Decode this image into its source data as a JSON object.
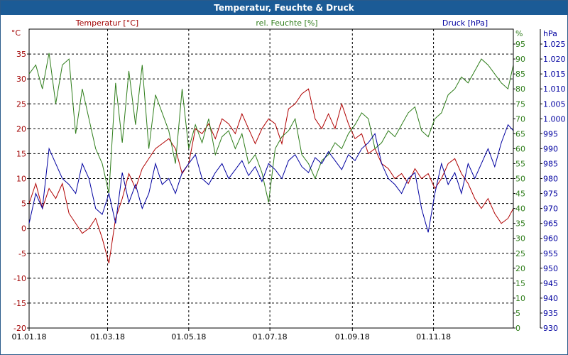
{
  "window": {
    "title": "Temperatur, Feuchte & Druck"
  },
  "chart_data": {
    "type": "line",
    "title": "Temperatur, Feuchte & Druck",
    "grid": true,
    "x_ticks": [
      "01.01.18",
      "01.03.18",
      "01.05.18",
      "01.07.18",
      "01.09.18",
      "01.11.18"
    ],
    "x_tick_days": [
      0,
      59,
      120,
      181,
      243,
      304
    ],
    "x_range_days": [
      0,
      364
    ],
    "axes": {
      "temperature": {
        "label": "Temperatur [°C]",
        "unit": "°C",
        "range": [
          -20,
          40
        ],
        "color": "#a00000",
        "ticks": [
          "-20",
          "-15",
          "-10",
          "-5",
          "0",
          "5",
          "10",
          "15",
          "20",
          "25",
          "30",
          "35"
        ]
      },
      "humidity": {
        "label": "rel. Feuchte [%]",
        "unit": "%",
        "range": [
          0,
          100
        ],
        "color": "#2e7d1a",
        "ticks": [
          "0",
          "5",
          "10",
          "15",
          "20",
          "25",
          "30",
          "35",
          "40",
          "45",
          "50",
          "55",
          "60",
          "65",
          "70",
          "75",
          "80",
          "85",
          "90",
          "95"
        ]
      },
      "pressure": {
        "label": "Druck [hPa]",
        "unit": "hPa",
        "range": [
          930,
          1030
        ],
        "color": "#0000a0",
        "ticks": [
          "930",
          "935",
          "940",
          "945",
          "950",
          "955",
          "960",
          "965",
          "970",
          "975",
          "980",
          "985",
          "990",
          "995",
          "1.000",
          "1.005",
          "1.010",
          "1.015",
          "1.020",
          "1.025"
        ]
      }
    },
    "series": [
      {
        "name": "Temperatur [°C]",
        "axis": "temperature",
        "color": "#b00000",
        "x": [
          0,
          5,
          10,
          15,
          20,
          25,
          30,
          35,
          40,
          45,
          50,
          55,
          60,
          65,
          70,
          75,
          80,
          85,
          90,
          95,
          100,
          105,
          110,
          115,
          120,
          125,
          130,
          135,
          140,
          145,
          150,
          155,
          160,
          165,
          170,
          175,
          180,
          185,
          190,
          195,
          200,
          205,
          210,
          215,
          220,
          225,
          230,
          235,
          240,
          245,
          250,
          255,
          260,
          265,
          270,
          275,
          280,
          285,
          290,
          295,
          300,
          305,
          310,
          315,
          320,
          325,
          330,
          335,
          340,
          345,
          350,
          355,
          360,
          364
        ],
        "y": [
          5,
          9,
          4,
          8,
          6,
          9,
          3,
          1,
          -1,
          0,
          2,
          -2,
          -7,
          2,
          6,
          11,
          8,
          12,
          14,
          16,
          17,
          18,
          16,
          11,
          13,
          20,
          19,
          21,
          18,
          22,
          21,
          19,
          23,
          20,
          17,
          20,
          22,
          21,
          17,
          24,
          25,
          27,
          28,
          22,
          20,
          23,
          20,
          25,
          21,
          18,
          19,
          15,
          16,
          13,
          12,
          10,
          11,
          9,
          12,
          10,
          11,
          8,
          10,
          13,
          14,
          11,
          9,
          6,
          4,
          6,
          3,
          1,
          2,
          4
        ]
      },
      {
        "name": "rel. Feuchte [%]",
        "axis": "humidity",
        "color": "#2e7d1a",
        "x": [
          0,
          5,
          10,
          15,
          20,
          25,
          30,
          35,
          40,
          45,
          50,
          55,
          60,
          65,
          70,
          75,
          80,
          85,
          90,
          95,
          100,
          105,
          110,
          115,
          120,
          125,
          130,
          135,
          140,
          145,
          150,
          155,
          160,
          165,
          170,
          175,
          180,
          185,
          190,
          195,
          200,
          205,
          210,
          215,
          220,
          225,
          230,
          235,
          240,
          245,
          250,
          255,
          260,
          265,
          270,
          275,
          280,
          285,
          290,
          295,
          300,
          305,
          310,
          315,
          320,
          325,
          330,
          335,
          340,
          345,
          350,
          355,
          360,
          364
        ],
        "y": [
          85,
          88,
          80,
          92,
          75,
          88,
          90,
          65,
          80,
          70,
          60,
          55,
          45,
          82,
          62,
          86,
          68,
          88,
          60,
          78,
          72,
          66,
          55,
          80,
          60,
          68,
          62,
          70,
          58,
          64,
          66,
          60,
          65,
          55,
          58,
          52,
          42,
          60,
          64,
          66,
          70,
          58,
          55,
          50,
          56,
          58,
          62,
          60,
          65,
          68,
          72,
          70,
          60,
          62,
          66,
          64,
          68,
          72,
          74,
          66,
          64,
          70,
          72,
          78,
          80,
          84,
          82,
          86,
          90,
          88,
          85,
          82,
          80,
          88
        ]
      },
      {
        "name": "Druck [hPa]",
        "axis": "pressure",
        "color": "#0000a0",
        "x": [
          0,
          5,
          10,
          15,
          20,
          25,
          30,
          35,
          40,
          45,
          50,
          55,
          60,
          65,
          70,
          75,
          80,
          85,
          90,
          95,
          100,
          105,
          110,
          115,
          120,
          125,
          130,
          135,
          140,
          145,
          150,
          155,
          160,
          165,
          170,
          175,
          180,
          185,
          190,
          195,
          200,
          205,
          210,
          215,
          220,
          225,
          230,
          235,
          240,
          245,
          250,
          255,
          260,
          265,
          270,
          275,
          280,
          285,
          290,
          295,
          300,
          305,
          310,
          315,
          320,
          325,
          330,
          335,
          340,
          345,
          350,
          355,
          360,
          364
        ],
        "y": [
          965,
          975,
          970,
          990,
          985,
          980,
          978,
          975,
          985,
          980,
          970,
          968,
          975,
          965,
          982,
          972,
          978,
          970,
          975,
          985,
          978,
          980,
          975,
          982,
          985,
          988,
          980,
          978,
          982,
          985,
          980,
          983,
          986,
          981,
          984,
          979,
          985,
          983,
          980,
          986,
          988,
          984,
          982,
          987,
          985,
          989,
          986,
          983,
          988,
          986,
          990,
          992,
          995,
          985,
          980,
          978,
          975,
          980,
          982,
          970,
          962,
          975,
          985,
          978,
          982,
          975,
          985,
          980,
          985,
          990,
          984,
          992,
          998,
          996
        ]
      }
    ]
  }
}
